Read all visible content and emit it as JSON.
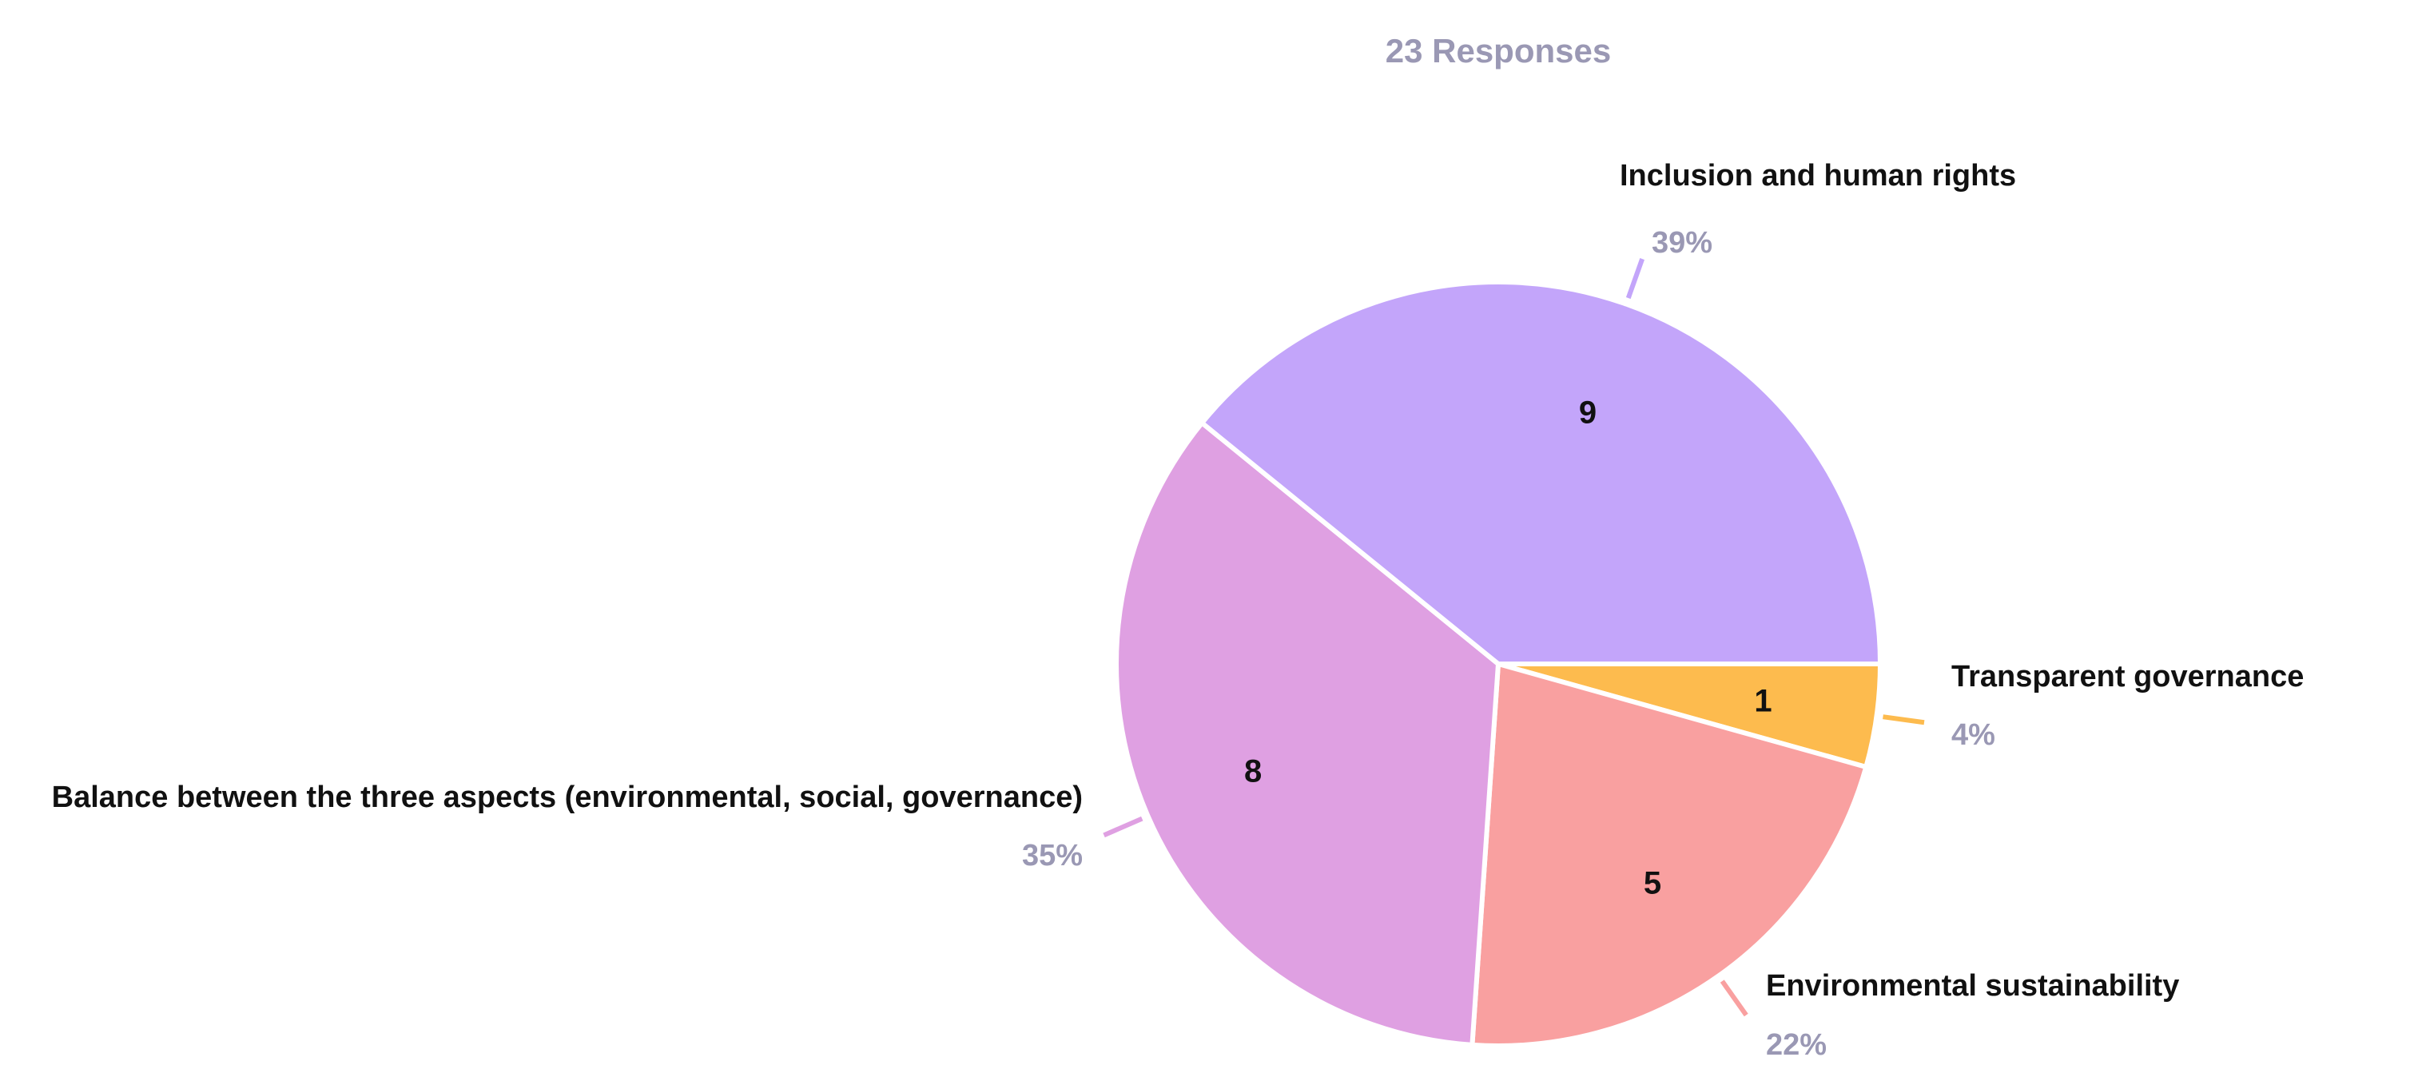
{
  "chart_data": {
    "type": "pie",
    "subtitle": "23 Responses",
    "total": 23,
    "slices": [
      {
        "label": "Transparent governance",
        "value": 1,
        "percent": "4%",
        "color": "#fdbb4e"
      },
      {
        "label": "Environmental sustainability",
        "value": 5,
        "percent": "22%",
        "color": "#f9a0a0"
      },
      {
        "label": "Balance between the three aspects (environmental, social, governance)",
        "value": 8,
        "percent": "35%",
        "color": "#dfa0e2"
      },
      {
        "label": "Inclusion and human rights",
        "value": 9,
        "percent": "39%",
        "color": "#c3a5fa"
      }
    ],
    "legend": "none"
  }
}
